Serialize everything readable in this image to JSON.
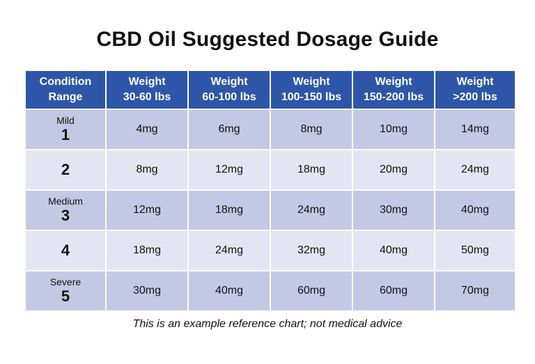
{
  "title": "CBD Oil Suggested Dosage Guide",
  "table": {
    "headers": [
      {
        "line1": "Condition",
        "line2": "Range"
      },
      {
        "line1": "Weight",
        "line2": "30-60 lbs"
      },
      {
        "line1": "Weight",
        "line2": "60-100 lbs"
      },
      {
        "line1": "Weight",
        "line2": "100-150 lbs"
      },
      {
        "line1": "Weight",
        "line2": "150-200 lbs"
      },
      {
        "line1": "Weight",
        "line2": ">200 lbs"
      }
    ],
    "rows": [
      {
        "severity": "Mild",
        "level": "1",
        "doses": [
          "4mg",
          "6mg",
          "8mg",
          "10mg",
          "14mg"
        ]
      },
      {
        "severity": "",
        "level": "2",
        "doses": [
          "8mg",
          "12mg",
          "18mg",
          "20mg",
          "24mg"
        ]
      },
      {
        "severity": "Medium",
        "level": "3",
        "doses": [
          "12mg",
          "18mg",
          "24mg",
          "30mg",
          "40mg"
        ]
      },
      {
        "severity": "",
        "level": "4",
        "doses": [
          "18mg",
          "24mg",
          "32mg",
          "40mg",
          "50mg"
        ]
      },
      {
        "severity": "Severe",
        "level": "5",
        "doses": [
          "30mg",
          "40mg",
          "60mg",
          "60mg",
          "70mg"
        ]
      }
    ]
  },
  "footnote": "This is an example reference chart; not medical advice",
  "colors": {
    "header_bg": "#2e56a8",
    "row_dark": "#c3c9e4",
    "row_light": "#e3e6f2"
  }
}
